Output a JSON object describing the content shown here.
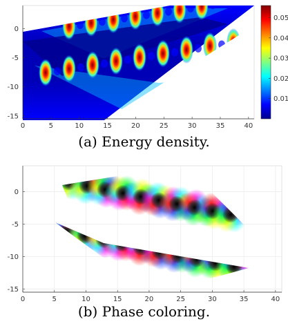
{
  "panels": [
    {
      "caption": "(a) Energy density.",
      "chart_data": {
        "type": "heatmap",
        "x_ticks": [
          0,
          5,
          10,
          15,
          20,
          25,
          30,
          35,
          40
        ],
        "y_ticks": [
          0,
          -5,
          -10,
          -15
        ],
        "xlim": [
          0,
          41
        ],
        "ylim": [
          -15.5,
          4
        ],
        "grid": false,
        "colorbar": {
          "ticks": [
            0.01,
            0.02,
            0.03,
            0.04,
            0.05
          ],
          "range": [
            0,
            0.056
          ],
          "colormap": "jet"
        }
      }
    },
    {
      "caption": "(b) Phase coloring.",
      "chart_data": {
        "type": "heatmap",
        "x_ticks": [
          0,
          5,
          10,
          15,
          20,
          25,
          30,
          35,
          40
        ],
        "y_ticks": [
          0,
          -5,
          -10,
          -15
        ],
        "xlim": [
          0,
          41
        ],
        "ylim": [
          -15.5,
          4
        ],
        "grid": true,
        "colormap": "hue-phase"
      }
    }
  ],
  "colors": {
    "background": "#ffffff",
    "low": "#00008f",
    "high": "#800000"
  }
}
